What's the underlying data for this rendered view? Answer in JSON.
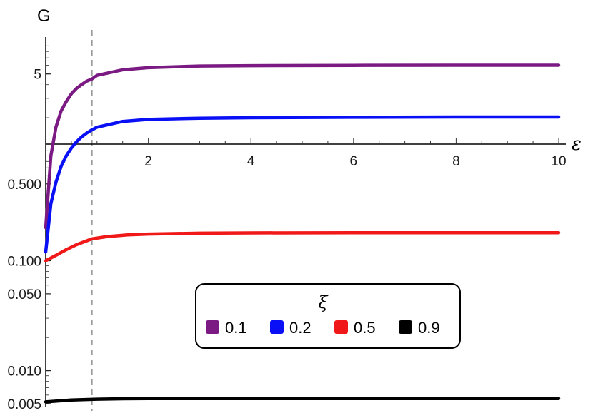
{
  "chart_data": {
    "type": "line",
    "title": "",
    "xlabel": "ε",
    "ylabel": "G",
    "xlim": [
      0,
      10
    ],
    "y_scale": "log",
    "ylim": [
      0.005,
      10
    ],
    "x_ticks": [
      2,
      4,
      6,
      8,
      10
    ],
    "x_tick_labels": [
      "2",
      "4",
      "6",
      "8",
      "10"
    ],
    "y_ticks": [
      0.005,
      0.01,
      0.05,
      0.1,
      0.5,
      5
    ],
    "y_tick_labels": [
      "0.005",
      "0.010",
      "0.050",
      "0.100",
      "0.500",
      "5"
    ],
    "reference_line": {
      "x": 0.9,
      "style": "dashed",
      "color": "#999999"
    },
    "grid": false,
    "legend": {
      "title": "ξ",
      "position": "center-right"
    },
    "series": [
      {
        "name": "0.1",
        "color": "#7b1a82",
        "x": [
          0,
          0.1,
          0.2,
          0.3,
          0.4,
          0.5,
          0.6,
          0.7,
          0.8,
          0.9,
          1.0,
          1.5,
          2.0,
          3.0,
          4.0,
          6.0,
          8.0,
          10.0
        ],
        "y": [
          0.2,
          0.9,
          1.65,
          2.3,
          2.8,
          3.3,
          3.7,
          4.0,
          4.3,
          4.5,
          4.85,
          5.45,
          5.7,
          5.9,
          5.95,
          5.98,
          6.0,
          6.0
        ]
      },
      {
        "name": "0.2",
        "color": "#0a10f5",
        "x": [
          0,
          0.1,
          0.2,
          0.3,
          0.4,
          0.5,
          0.6,
          0.7,
          0.8,
          0.9,
          1.0,
          1.5,
          2.0,
          3.0,
          4.0,
          6.0,
          8.0,
          10.0
        ],
        "y": [
          0.12,
          0.33,
          0.52,
          0.72,
          0.9,
          1.06,
          1.21,
          1.34,
          1.45,
          1.55,
          1.64,
          1.85,
          1.93,
          1.98,
          2.0,
          2.02,
          2.03,
          2.03
        ]
      },
      {
        "name": "0.5",
        "color": "#f01818",
        "x": [
          0,
          0.2,
          0.4,
          0.6,
          0.9,
          1.2,
          1.6,
          2.0,
          3.0,
          4.0,
          6.0,
          8.0,
          10.0
        ],
        "y": [
          0.1,
          0.112,
          0.126,
          0.14,
          0.158,
          0.166,
          0.172,
          0.175,
          0.178,
          0.179,
          0.18,
          0.18,
          0.18
        ]
      },
      {
        "name": "0.9",
        "color": "#000000",
        "x": [
          0,
          0.5,
          1.0,
          1.5,
          2.0,
          3.0,
          4.0,
          6.0,
          8.0,
          10.0
        ],
        "y": [
          0.0052,
          0.0054,
          0.0055,
          0.00555,
          0.00557,
          0.00558,
          0.00558,
          0.00558,
          0.00558,
          0.00558
        ]
      }
    ]
  }
}
